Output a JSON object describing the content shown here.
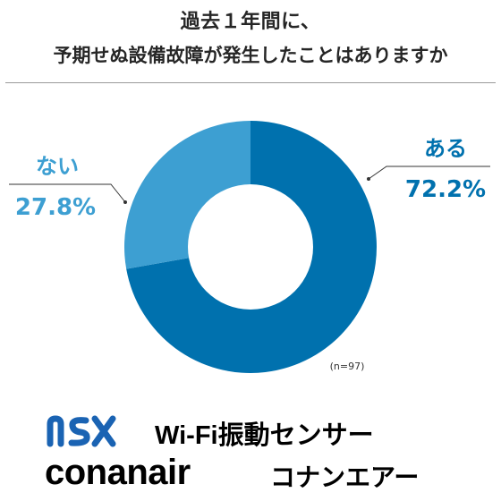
{
  "header": {
    "title_line1": "過去１年間に、",
    "title_line2": "予期せぬ設備故障が発生したことはありますか"
  },
  "chart_data": {
    "type": "pie",
    "variant": "donut",
    "slices": [
      {
        "label": "ある",
        "percent_text": "72.2%",
        "value": 72.2,
        "color": "#0071ae"
      },
      {
        "label": "ない",
        "percent_text": "27.8%",
        "value": 27.8,
        "color": "#3d9fd2"
      }
    ],
    "sample_note": "(n=97)"
  },
  "footer": {
    "logo_icon": "nsx-logo",
    "logo_color": "#1a63b3",
    "product": "Wi-Fi振動センサー",
    "company": "conanair",
    "company_kana": "コナンエアー"
  }
}
